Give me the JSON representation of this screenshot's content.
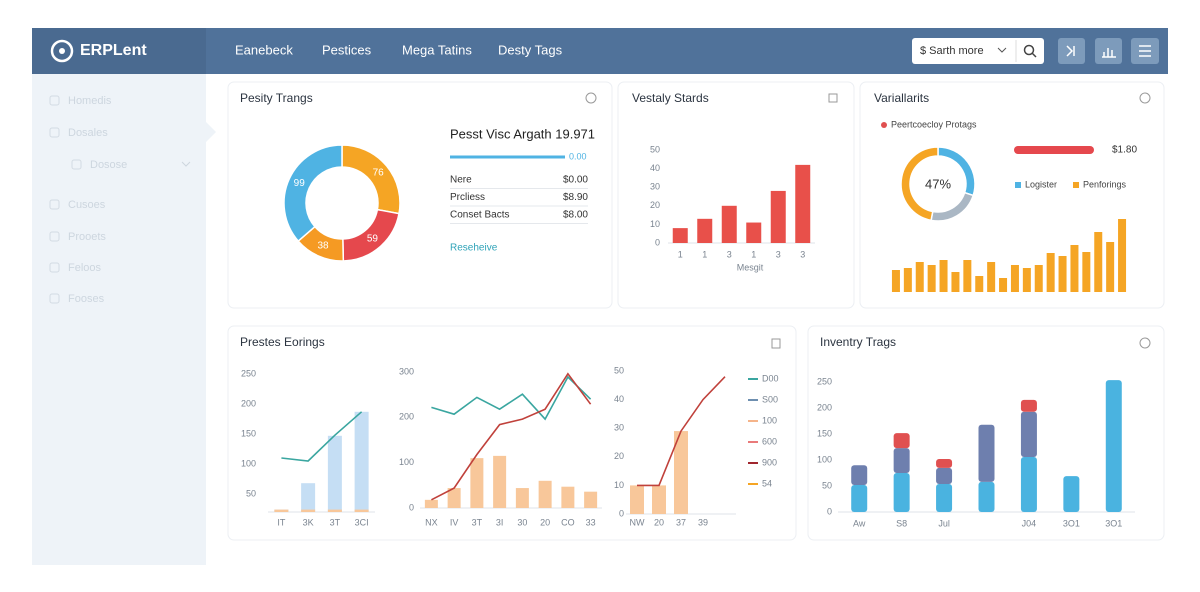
{
  "header": {
    "logo": "ERPLent",
    "nav": [
      "Eanebeck",
      "Pestices",
      "Mega Tatins",
      "Desty Tags"
    ],
    "search": "$ Sarth more"
  },
  "sidebar": [
    "Homedis",
    "Dosales",
    "Dosose",
    "Cusoes",
    "Prooets",
    "Feloos",
    "Fooses"
  ],
  "summary": {
    "title": "Pesst Visc Argath 19.971",
    "progress_label": "0.00",
    "rows": [
      {
        "label": "Nere",
        "value": "$0.00"
      },
      {
        "label": "Prcliess",
        "value": "$8.90"
      },
      {
        "label": "Conset Bacts",
        "value": "$8.00"
      }
    ],
    "link": "Reseheive"
  },
  "variance_legend": {
    "label": "Peertcoecloy Protags",
    "amount": "$1.80"
  },
  "chart_data": [
    {
      "type": "pie",
      "title": "Pesity Trangs",
      "values": [
        76,
        59,
        38,
        99
      ],
      "colors": [
        "#f5a524",
        "#e5484d",
        "#f59a23",
        "#4fb3e3"
      ]
    },
    {
      "type": "bar",
      "title": "Vestaly Stards",
      "categories": [
        "1",
        "1",
        "3",
        "1",
        "3",
        "3"
      ],
      "values": [
        8,
        13,
        20,
        11,
        28,
        42
      ],
      "color": "#e8504a",
      "ylim": [
        0,
        50
      ],
      "yticks": [
        0,
        10,
        20,
        30,
        40,
        50
      ],
      "xlabel": "Mesgit"
    },
    {
      "type": "pie",
      "title": "Variallarits",
      "categories": [
        "Logister",
        null,
        "Penforings"
      ],
      "values": [
        30,
        23,
        47
      ],
      "value_labels": [
        null,
        null,
        "47%"
      ],
      "colors": [
        "#4fb3e3",
        "#aab7c4",
        "#f5a524"
      ]
    },
    {
      "type": "bar",
      "values": [
        22,
        24,
        30,
        27,
        32,
        20,
        32,
        16,
        30,
        14,
        27,
        24,
        27,
        39,
        36,
        47,
        40,
        60,
        50,
        73
      ],
      "color": "#f5a524",
      "ylim": [
        0,
        100
      ]
    },
    {
      "type": "combo",
      "title": "Prestes Eorings",
      "categories": [
        "IT",
        "3K",
        "3T",
        "3CI"
      ],
      "ylim": [
        20,
        265
      ],
      "yticks": [
        50,
        100,
        150,
        200,
        250
      ],
      "series": [
        {
          "type": "bar",
          "color": "#c5def4",
          "values": [
            24,
            68,
            147,
            187
          ]
        },
        {
          "type": "bar",
          "color": "#f8c79a",
          "values": [
            24,
            24,
            24,
            24
          ]
        },
        {
          "type": "line",
          "color": "#3aa6a0",
          "values": [
            110,
            105,
            148,
            187
          ]
        }
      ]
    },
    {
      "type": "combo",
      "categories": [
        "NX",
        "IV",
        "3T",
        "3I",
        "30",
        "20",
        "CO",
        "33"
      ],
      "ylim": [
        0,
        300
      ],
      "yticks": [
        0,
        100,
        200,
        300
      ],
      "series": [
        {
          "type": "bar",
          "color": "#f8c79a",
          "values": [
            18,
            44,
            110,
            115,
            44,
            60,
            47,
            36
          ]
        },
        {
          "type": "line",
          "color": "#3aa6a0",
          "values": [
            222,
            207,
            244,
            218,
            251,
            196,
            289,
            240
          ]
        },
        {
          "type": "line",
          "color": "#c0413b",
          "values": [
            18,
            44,
            118,
            184,
            196,
            218,
            296,
            229
          ]
        }
      ]
    },
    {
      "type": "combo",
      "categories": [
        "NW",
        "20",
        "37",
        "39",
        null
      ],
      "ylim": [
        0,
        50
      ],
      "yticks": [
        0,
        10,
        20,
        30,
        40,
        50
      ],
      "series": [
        {
          "type": "bar",
          "color": "#f8c79a",
          "values": [
            10,
            10,
            29,
            null,
            null
          ]
        },
        {
          "type": "line",
          "color": "#c0413b",
          "values": [
            10,
            10,
            29,
            40,
            48
          ]
        }
      ],
      "legend": [
        {
          "name": "D00",
          "color": "#3aa6a0"
        },
        {
          "name": "S00",
          "color": "#6e8fb0"
        },
        {
          "name": "100",
          "color": "#f5b48a"
        },
        {
          "name": "600",
          "color": "#e97a7a"
        },
        {
          "name": "900",
          "color": "#a0262e"
        },
        {
          "name": "54",
          "color": "#f5a524"
        }
      ]
    },
    {
      "type": "stacked_bar",
      "title": "Inventry Trags",
      "categories": [
        "Aw",
        "S8",
        "Jul",
        null,
        "J04",
        "3O1",
        "3O1"
      ],
      "ylim": [
        0,
        260
      ],
      "yticks": [
        0,
        50,
        100,
        150,
        200,
        250
      ],
      "series": [
        {
          "color": "#4ab3e0",
          "values": [
            52,
            75,
            54,
            58,
            106,
            69,
            254
          ]
        },
        {
          "color": "#6e7fae",
          "values": [
            38,
            48,
            31,
            110,
            87,
            0,
            0
          ]
        },
        {
          "color": "#e05050",
          "values": [
            0,
            29,
            17,
            0,
            23,
            0,
            0
          ]
        }
      ]
    }
  ]
}
